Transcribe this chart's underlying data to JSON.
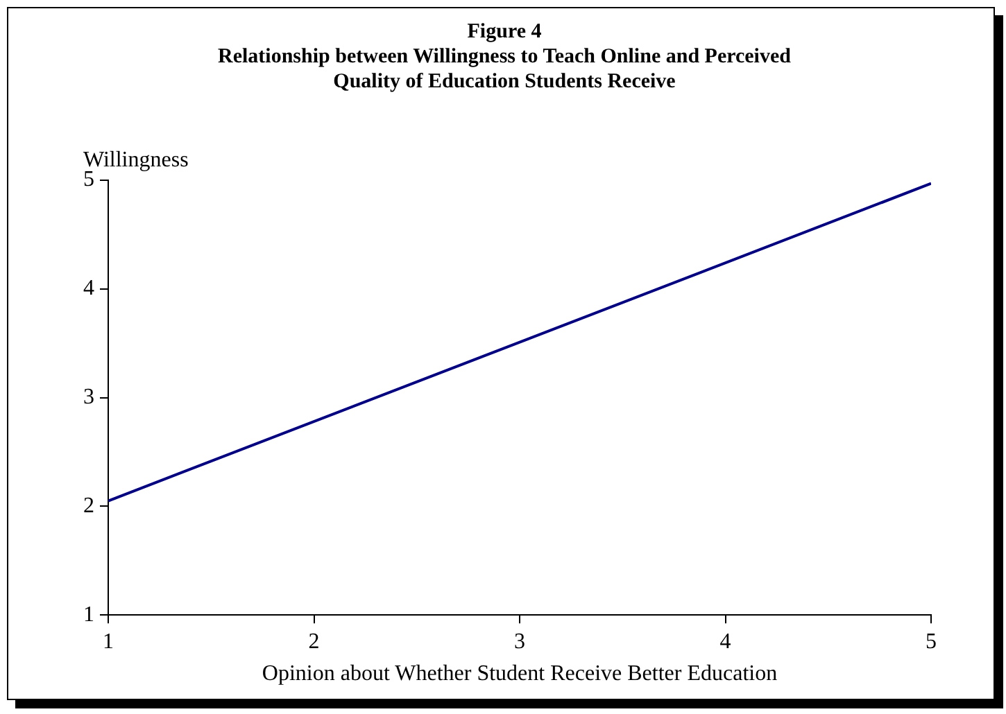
{
  "chart_data": {
    "type": "line",
    "title": "Figure 4\nRelationship between Willingness to Teach Online and Perceived\nQuality of Education Students Receive",
    "xlabel": "Opinion about Whether Student Receive Better Education",
    "ylabel": "Willingness",
    "x": [
      1,
      5
    ],
    "series": [
      {
        "color": "#000080",
        "values": [
          2.05,
          4.97
        ]
      }
    ],
    "xlim": [
      1,
      5
    ],
    "xticks": [
      1,
      2,
      3,
      4,
      5
    ],
    "ylim": [
      1,
      5
    ],
    "yticks": [
      1,
      2,
      3,
      4,
      5
    ],
    "grid": false,
    "legend": false,
    "marker": "none",
    "line_style": "solid"
  }
}
